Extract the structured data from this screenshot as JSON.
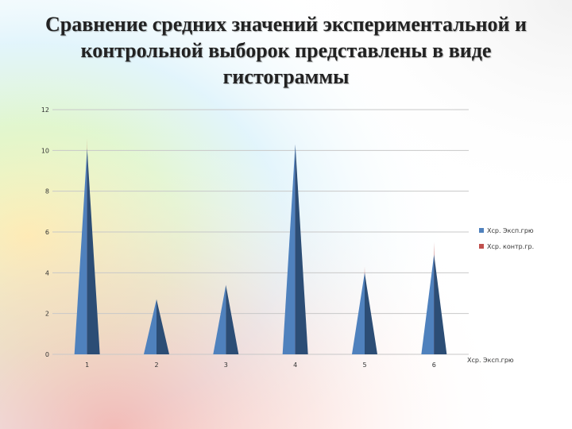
{
  "slide": {
    "title": "Сравнение средних значений экспериментальной и контрольной выборок представлены в виде гистограммы"
  },
  "colors": {
    "series_exp": "#4f81bd",
    "series_exp_dark": "#2c4d75",
    "series_ctrl": "#c0504d",
    "grid": "#c8c8c8"
  },
  "chart_data": {
    "type": "bar",
    "bar_shape": "cone",
    "categories": [
      "1",
      "2",
      "3",
      "4",
      "5",
      "6"
    ],
    "series": [
      {
        "name": "Хср. Эксп.грю",
        "values": [
          10.1,
          2.7,
          3.4,
          10.3,
          4.0,
          4.9
        ]
      },
      {
        "name": "Хср. контр.гр.",
        "values": [
          10.6,
          0,
          0,
          10.0,
          4.3,
          5.5
        ]
      }
    ],
    "ylim": [
      0,
      12
    ],
    "yticks": [
      "0",
      "2",
      "4",
      "6",
      "8",
      "10",
      "12"
    ],
    "grid": true,
    "legend_position": "right",
    "axis_end_label": "Хср. Эксп.грю"
  }
}
